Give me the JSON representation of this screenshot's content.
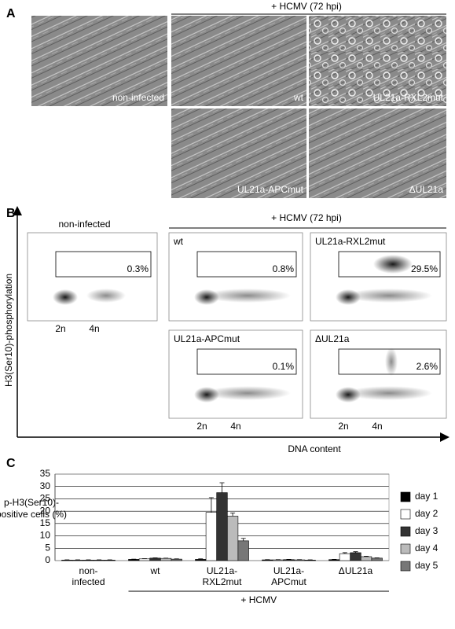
{
  "panel_a": {
    "label": "A",
    "header": "+ HCMV (72 hpi)",
    "images": [
      "non-infected",
      "wt",
      "UL21a-RXL2mut",
      "UL21a-APCmut",
      "ΔUL21a"
    ]
  },
  "panel_b": {
    "label": "B",
    "header": "+ HCMV (72 hpi)",
    "y_label": "H3(Ser10)-phosphorylation",
    "x_label": "DNA content",
    "ticks": [
      "2n",
      "4n"
    ],
    "plots": [
      {
        "name": "non-infected",
        "gate": "0.3%"
      },
      {
        "name": "wt",
        "gate": "0.8%"
      },
      {
        "name": "UL21a-RXL2mut",
        "gate": "29.5%"
      },
      {
        "name": "UL21a-APCmut",
        "gate": "0.1%"
      },
      {
        "name": "ΔUL21a",
        "gate": "2.6%"
      }
    ]
  },
  "chart_data": {
    "type": "bar",
    "panel_label": "C",
    "y_label": [
      "p-H3(Ser10)-",
      "positive cells (%)"
    ],
    "group_label": "+ HCMV",
    "categories": [
      [
        "non-",
        "infected"
      ],
      [
        "wt"
      ],
      [
        "UL21a-",
        "RXL2mut"
      ],
      [
        "UL21a-",
        "APCmut"
      ],
      [
        "ΔUL21a"
      ]
    ],
    "series": [
      {
        "name": "day 1",
        "color": "#000000",
        "values": [
          0.2,
          0.5,
          0.5,
          0.3,
          0.4
        ],
        "errors": [
          0.1,
          0.1,
          0.2,
          0.1,
          0.1
        ]
      },
      {
        "name": "day 2",
        "color": "#ffffff",
        "values": [
          0.2,
          0.7,
          19.5,
          0.3,
          2.8
        ],
        "errors": [
          0.1,
          0.1,
          6,
          0.1,
          0.4
        ]
      },
      {
        "name": "day 3",
        "color": "#333333",
        "values": [
          0.2,
          1.0,
          27.5,
          0.4,
          3.2
        ],
        "errors": [
          0.1,
          0.1,
          4,
          0.1,
          0.4
        ]
      },
      {
        "name": "day 4",
        "color": "#bbbbbb",
        "values": [
          0.2,
          0.9,
          18,
          0.3,
          1.6
        ],
        "errors": [
          0.1,
          0.1,
          1.3,
          0.1,
          0.2
        ]
      },
      {
        "name": "day 5",
        "color": "#777777",
        "values": [
          0.2,
          0.6,
          8,
          0.2,
          1.0
        ],
        "errors": [
          0.1,
          0.1,
          1,
          0.1,
          0.1
        ]
      }
    ],
    "ylim": [
      0,
      35
    ],
    "yticks": [
      0,
      5,
      10,
      15,
      20,
      25,
      30,
      35
    ],
    "grid": true
  }
}
